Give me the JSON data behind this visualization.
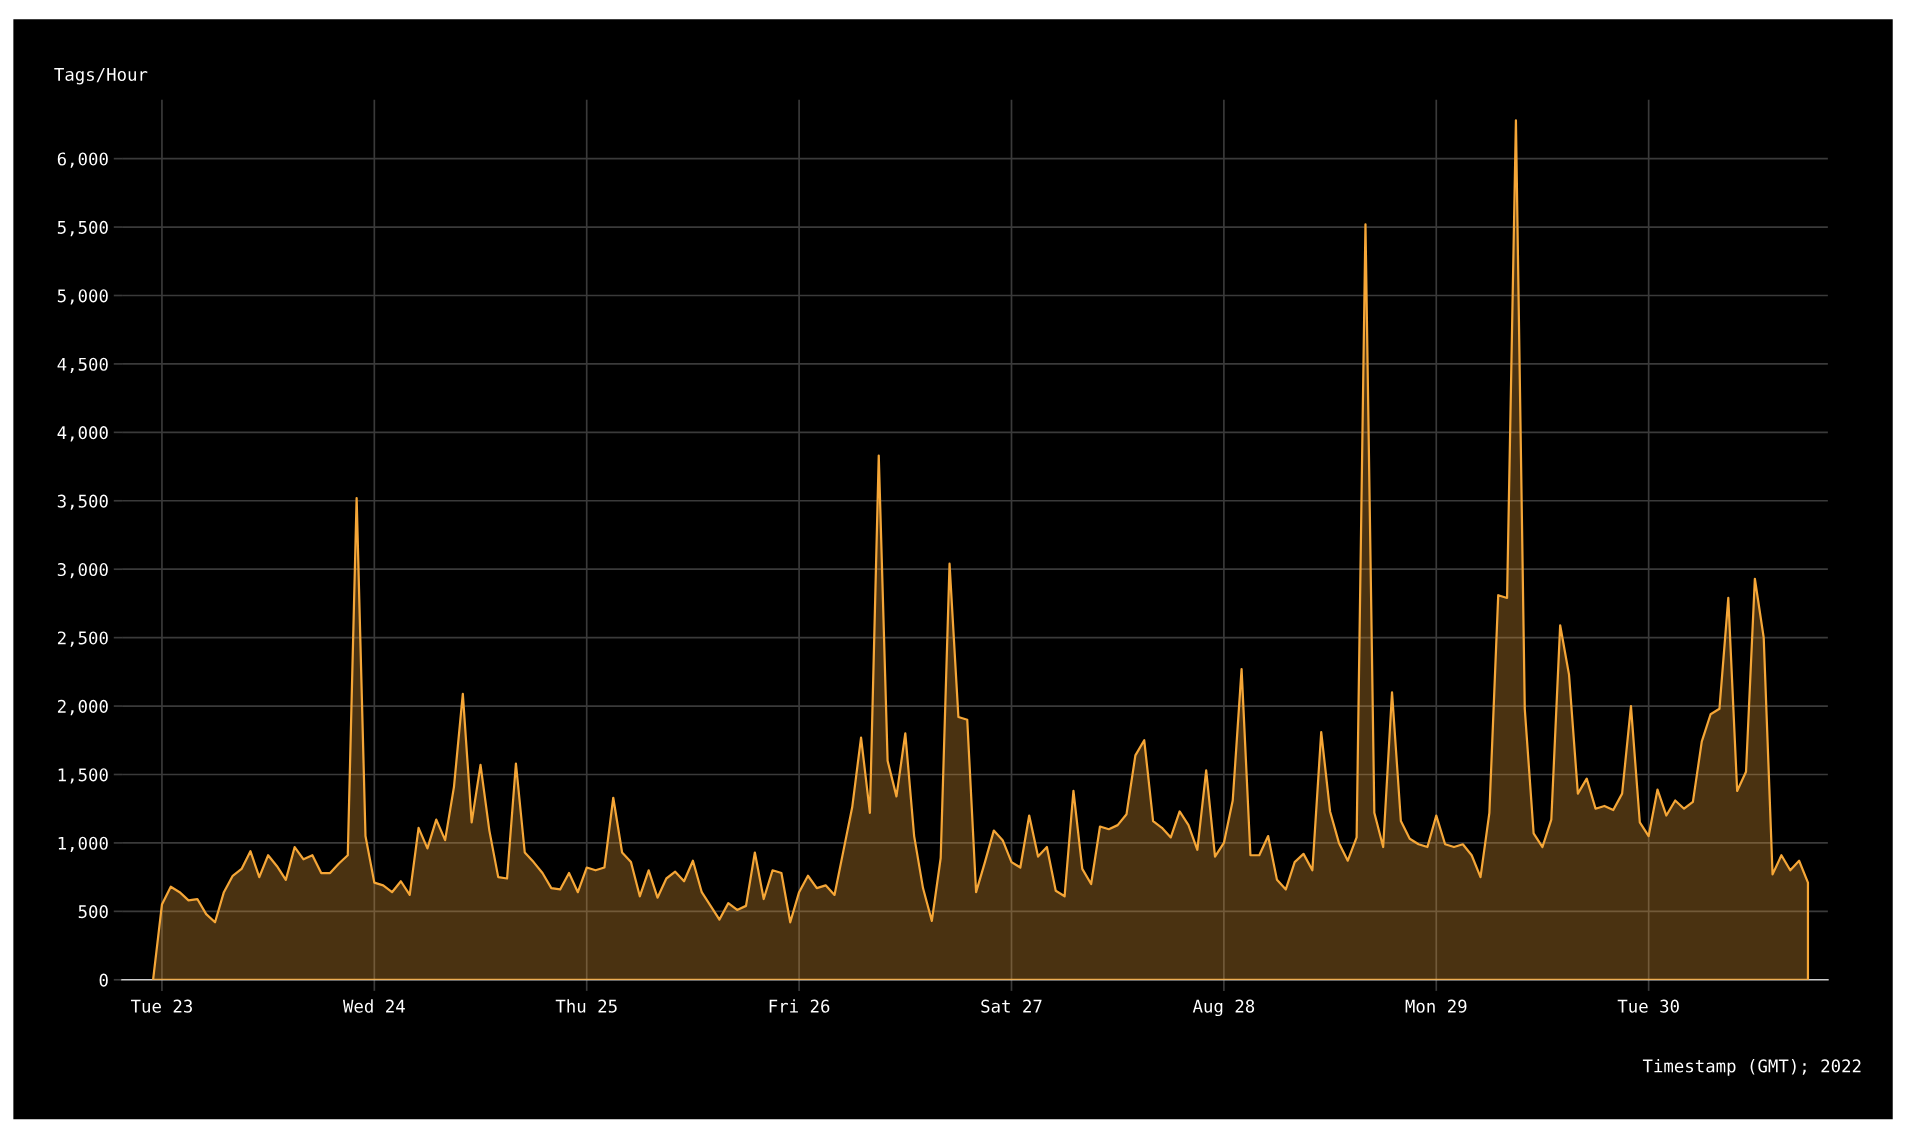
{
  "chart_data": {
    "type": "area",
    "ylabel": "Tags/Hour",
    "xlabel": "Timestamp (GMT); 2022",
    "x": [
      "2022-08-22T23:00",
      "2022-08-23T00:00",
      "2022-08-23T01:00",
      "2022-08-23T02:00",
      "2022-08-23T03:00",
      "2022-08-23T04:00",
      "2022-08-23T05:00",
      "2022-08-23T06:00",
      "2022-08-23T07:00",
      "2022-08-23T08:00",
      "2022-08-23T09:00",
      "2022-08-23T10:00",
      "2022-08-23T11:00",
      "2022-08-23T12:00",
      "2022-08-23T13:00",
      "2022-08-23T14:00",
      "2022-08-23T15:00",
      "2022-08-23T16:00",
      "2022-08-23T17:00",
      "2022-08-23T18:00",
      "2022-08-23T19:00",
      "2022-08-23T20:00",
      "2022-08-23T21:00",
      "2022-08-23T22:00",
      "2022-08-23T23:00",
      "2022-08-24T00:00",
      "2022-08-24T01:00",
      "2022-08-24T02:00",
      "2022-08-24T03:00",
      "2022-08-24T04:00",
      "2022-08-24T05:00",
      "2022-08-24T06:00",
      "2022-08-24T07:00",
      "2022-08-24T08:00",
      "2022-08-24T09:00",
      "2022-08-24T10:00",
      "2022-08-24T11:00",
      "2022-08-24T12:00",
      "2022-08-24T13:00",
      "2022-08-24T14:00",
      "2022-08-24T15:00",
      "2022-08-24T16:00",
      "2022-08-24T17:00",
      "2022-08-24T18:00",
      "2022-08-24T19:00",
      "2022-08-24T20:00",
      "2022-08-24T21:00",
      "2022-08-24T22:00",
      "2022-08-24T23:00",
      "2022-08-25T00:00",
      "2022-08-25T01:00",
      "2022-08-25T02:00",
      "2022-08-25T03:00",
      "2022-08-25T04:00",
      "2022-08-25T05:00",
      "2022-08-25T06:00",
      "2022-08-25T07:00",
      "2022-08-25T08:00",
      "2022-08-25T09:00",
      "2022-08-25T10:00",
      "2022-08-25T11:00",
      "2022-08-25T12:00",
      "2022-08-25T13:00",
      "2022-08-25T14:00",
      "2022-08-25T15:00",
      "2022-08-25T16:00",
      "2022-08-25T17:00",
      "2022-08-25T18:00",
      "2022-08-25T19:00",
      "2022-08-25T20:00",
      "2022-08-25T21:00",
      "2022-08-25T22:00",
      "2022-08-25T23:00",
      "2022-08-26T00:00",
      "2022-08-26T01:00",
      "2022-08-26T02:00",
      "2022-08-26T03:00",
      "2022-08-26T04:00",
      "2022-08-26T05:00",
      "2022-08-26T06:00",
      "2022-08-26T07:00",
      "2022-08-26T08:00",
      "2022-08-26T09:00",
      "2022-08-26T10:00",
      "2022-08-26T11:00",
      "2022-08-26T12:00",
      "2022-08-26T13:00",
      "2022-08-26T14:00",
      "2022-08-26T15:00",
      "2022-08-26T16:00",
      "2022-08-26T17:00",
      "2022-08-26T18:00",
      "2022-08-26T19:00",
      "2022-08-26T20:00",
      "2022-08-26T21:00",
      "2022-08-26T22:00",
      "2022-08-26T23:00",
      "2022-08-27T00:00",
      "2022-08-27T01:00",
      "2022-08-27T02:00",
      "2022-08-27T03:00",
      "2022-08-27T04:00",
      "2022-08-27T05:00",
      "2022-08-27T06:00",
      "2022-08-27T07:00",
      "2022-08-27T08:00",
      "2022-08-27T09:00",
      "2022-08-27T10:00",
      "2022-08-27T11:00",
      "2022-08-27T12:00",
      "2022-08-27T13:00",
      "2022-08-27T14:00",
      "2022-08-27T15:00",
      "2022-08-27T16:00",
      "2022-08-27T17:00",
      "2022-08-27T18:00",
      "2022-08-27T19:00",
      "2022-08-27T20:00",
      "2022-08-27T21:00",
      "2022-08-27T22:00",
      "2022-08-27T23:00",
      "2022-08-28T00:00",
      "2022-08-28T01:00",
      "2022-08-28T02:00",
      "2022-08-28T03:00",
      "2022-08-28T04:00",
      "2022-08-28T05:00",
      "2022-08-28T06:00",
      "2022-08-28T07:00",
      "2022-08-28T08:00",
      "2022-08-28T09:00",
      "2022-08-28T10:00",
      "2022-08-28T11:00",
      "2022-08-28T12:00",
      "2022-08-28T13:00",
      "2022-08-28T14:00",
      "2022-08-28T15:00",
      "2022-08-28T16:00",
      "2022-08-28T17:00",
      "2022-08-28T18:00",
      "2022-08-28T19:00",
      "2022-08-28T20:00",
      "2022-08-28T21:00",
      "2022-08-28T22:00",
      "2022-08-28T23:00",
      "2022-08-29T00:00",
      "2022-08-29T01:00",
      "2022-08-29T02:00",
      "2022-08-29T03:00",
      "2022-08-29T04:00",
      "2022-08-29T05:00",
      "2022-08-29T06:00",
      "2022-08-29T07:00",
      "2022-08-29T08:00",
      "2022-08-29T09:00",
      "2022-08-29T10:00",
      "2022-08-29T11:00",
      "2022-08-29T12:00",
      "2022-08-29T13:00",
      "2022-08-29T14:00",
      "2022-08-29T15:00",
      "2022-08-29T16:00",
      "2022-08-29T17:00",
      "2022-08-29T18:00",
      "2022-08-29T19:00",
      "2022-08-29T20:00",
      "2022-08-29T21:00",
      "2022-08-29T22:00",
      "2022-08-29T23:00",
      "2022-08-30T00:00",
      "2022-08-30T01:00",
      "2022-08-30T02:00",
      "2022-08-30T03:00",
      "2022-08-30T04:00",
      "2022-08-30T05:00",
      "2022-08-30T06:00",
      "2022-08-30T07:00",
      "2022-08-30T08:00",
      "2022-08-30T09:00",
      "2022-08-30T10:00",
      "2022-08-30T11:00",
      "2022-08-30T12:00",
      "2022-08-30T13:00",
      "2022-08-30T14:00",
      "2022-08-30T15:00",
      "2022-08-30T16:00",
      "2022-08-30T17:00",
      "2022-08-30T18:00"
    ],
    "series": [
      {
        "color": "#f5a637",
        "values": [
          0,
          550,
          680,
          640,
          580,
          590,
          480,
          420,
          640,
          760,
          810,
          940,
          750,
          910,
          830,
          730,
          970,
          880,
          910,
          780,
          780,
          850,
          910,
          3520,
          1050,
          710,
          690,
          640,
          720,
          620,
          1110,
          960,
          1170,
          1020,
          1410,
          2090,
          1150,
          1570,
          1090,
          750,
          740,
          1580,
          930,
          860,
          780,
          670,
          660,
          780,
          640,
          820,
          800,
          820,
          1330,
          930,
          860,
          610,
          800,
          600,
          740,
          790,
          720,
          870,
          640,
          540,
          440,
          560,
          510,
          540,
          930,
          590,
          800,
          780,
          420,
          640,
          760,
          670,
          690,
          620,
          940,
          1260,
          1770,
          1220,
          3830,
          1600,
          1340,
          1800,
          1050,
          670,
          430,
          890,
          3040,
          1920,
          1900,
          640,
          860,
          1090,
          1020,
          860,
          820,
          1200,
          900,
          970,
          650,
          610,
          1380,
          810,
          700,
          1120,
          1100,
          1130,
          1210,
          1640,
          1750,
          1160,
          1110,
          1040,
          1230,
          1130,
          950,
          1530,
          900,
          1000,
          1310,
          2270,
          910,
          910,
          1050,
          730,
          660,
          860,
          920,
          800,
          1810,
          1230,
          1000,
          870,
          1040,
          5520,
          1220,
          970,
          2100,
          1160,
          1030,
          990,
          970,
          1200,
          990,
          970,
          990,
          910,
          750,
          1220,
          2810,
          2790,
          6280,
          1980,
          1070,
          970,
          1170,
          2590,
          2230,
          1360,
          1470,
          1250,
          1270,
          1240,
          1360,
          2000,
          1150,
          1050,
          1390,
          1200,
          1310,
          1250,
          1300,
          1740,
          1940,
          1980,
          2790,
          1380,
          1520,
          2930,
          2500,
          770,
          910,
          800,
          870,
          710
        ]
      }
    ],
    "xlim": [
      "2022-08-22T19:30",
      "2022-08-30T20:15"
    ],
    "xticks": [
      {
        "value": "2022-08-23",
        "label": "Tue 23"
      },
      {
        "value": "2022-08-24",
        "label": "Wed 24"
      },
      {
        "value": "2022-08-25",
        "label": "Thu 25"
      },
      {
        "value": "2022-08-26",
        "label": "Fri 26"
      },
      {
        "value": "2022-08-27",
        "label": "Sat 27"
      },
      {
        "value": "2022-08-28",
        "label": "Aug 28"
      },
      {
        "value": "2022-08-29",
        "label": "Mon 29"
      },
      {
        "value": "2022-08-30",
        "label": "Tue 30"
      }
    ],
    "ylim": [
      0,
      6430
    ],
    "yticks": [
      0,
      500,
      {
        "value": 1000,
        "label": "1,000"
      },
      {
        "value": 1500,
        "label": "1,500"
      },
      {
        "value": 2000,
        "label": "2,000"
      },
      {
        "value": 2500,
        "label": "2,500"
      },
      {
        "value": 3000,
        "label": "3,000"
      },
      {
        "value": 3500,
        "label": "3,500"
      },
      {
        "value": 4000,
        "label": "4,000"
      },
      {
        "value": 4500,
        "label": "4,500"
      },
      {
        "value": 5000,
        "label": "5,000"
      },
      {
        "value": 5500,
        "label": "5,500"
      },
      {
        "value": 6000,
        "label": "6,000"
      }
    ],
    "grid": true
  }
}
